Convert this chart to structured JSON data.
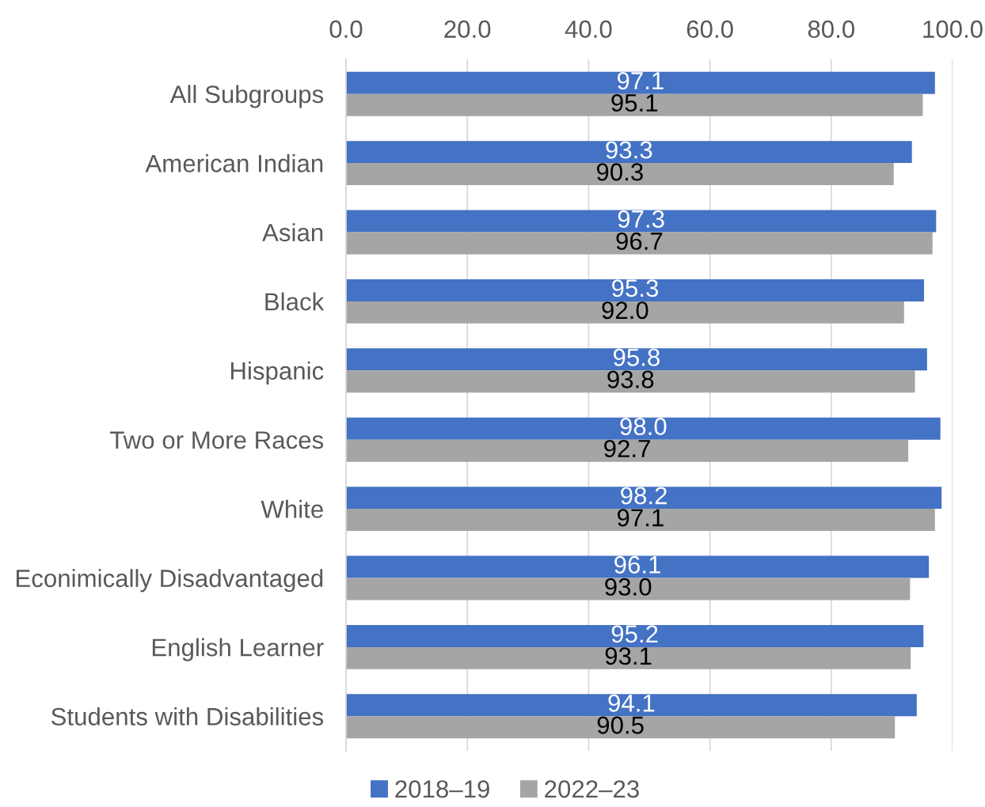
{
  "chart_data": {
    "type": "bar",
    "orientation": "horizontal",
    "categories": [
      "All Subgroups",
      "American Indian",
      "Asian",
      "Black",
      "Hispanic",
      "Two or More Races",
      "White",
      "Econimically Disadvantaged",
      "English Learner",
      "Students with Disabilities"
    ],
    "series": [
      {
        "name": "2018–19",
        "color": "#4472c4",
        "values": [
          97.1,
          93.3,
          97.3,
          95.3,
          95.8,
          98.0,
          98.2,
          96.1,
          95.2,
          94.1
        ],
        "value_labels": [
          "97.1",
          "93.3",
          "97.3",
          "95.3",
          "95.8",
          "98.0",
          "98.2",
          "96.1",
          "95.2",
          "94.1"
        ]
      },
      {
        "name": "2022–23",
        "color": "#a5a5a5",
        "values": [
          95.1,
          90.3,
          96.7,
          92.0,
          93.8,
          92.7,
          97.1,
          93.0,
          93.1,
          90.5
        ],
        "value_labels": [
          "95.1",
          "90.3",
          "96.7",
          "92.0",
          "93.8",
          "92.7",
          "97.1",
          "93.0",
          "93.1",
          "90.5"
        ]
      }
    ],
    "xlim": [
      0,
      100
    ],
    "xticks": [
      {
        "value": 0,
        "label": "0.0"
      },
      {
        "value": 20,
        "label": "20.0"
      },
      {
        "value": 40,
        "label": "40.0"
      },
      {
        "value": 60,
        "label": "60.0"
      },
      {
        "value": 80,
        "label": "80.0"
      },
      {
        "value": 100,
        "label": "100.0"
      }
    ],
    "grid": "x",
    "legend": "bottom"
  }
}
